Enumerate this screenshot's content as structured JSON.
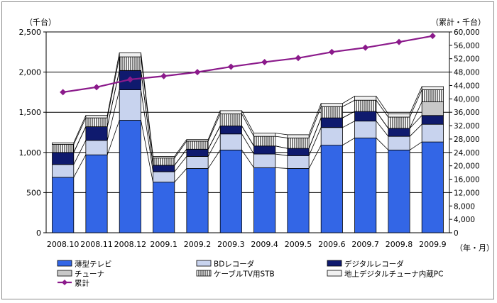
{
  "chart_data": {
    "type": "bar",
    "stacked": true,
    "categories": [
      "2008.10",
      "2008.11",
      "2008.12",
      "2009.1",
      "2009.2",
      "2009.3",
      "2009.4",
      "2009.5",
      "2009.6",
      "2009.7",
      "2009.8",
      "2009.9"
    ],
    "y_left_label": "（千台）",
    "y_right_label": "（累計・千台）",
    "x_unit_label": "（年・月）",
    "y_left_range": [
      0,
      2500
    ],
    "y_left_ticks": [
      "0",
      "500",
      "1,000",
      "1,500",
      "2,000",
      "2,500"
    ],
    "y_right_range": [
      0,
      60000
    ],
    "y_right_ticks": [
      "0",
      "4,000",
      "8,000",
      "12,000",
      "16,000",
      "20,000",
      "24,000",
      "28,000",
      "32,000",
      "36,000",
      "40,000",
      "44,000",
      "48,000",
      "52,000",
      "56,000",
      "60,000"
    ],
    "series": [
      {
        "name": "薄型テレビ",
        "values": [
          690,
          970,
          1400,
          630,
          800,
          1030,
          810,
          800,
          1090,
          1180,
          1030,
          1130
        ],
        "color": "#3366e6"
      },
      {
        "name": "BDレコーダ",
        "values": [
          160,
          180,
          380,
          130,
          150,
          200,
          170,
          160,
          220,
          210,
          170,
          220
        ],
        "color": "#c8d3ee"
      },
      {
        "name": "デジタルレコーダ",
        "values": [
          150,
          170,
          240,
          80,
          90,
          100,
          100,
          90,
          120,
          120,
          100,
          110
        ],
        "color": "#0f1a6e"
      },
      {
        "name": "チューナ",
        "values": [
          0,
          0,
          0,
          0,
          0,
          0,
          0,
          0,
          0,
          0,
          0,
          170
        ],
        "color": "#c8c8c8"
      },
      {
        "name": "ケーブルTV用STB",
        "values": [
          100,
          110,
          170,
          90,
          100,
          150,
          120,
          130,
          140,
          140,
          140,
          150
        ],
        "color": "hatch"
      },
      {
        "name": "地上デジタルチューナ内蔵PC",
        "values": [
          20,
          30,
          50,
          20,
          20,
          40,
          40,
          40,
          40,
          50,
          40,
          40
        ],
        "color": "#f0f0f0"
      }
    ],
    "line": {
      "name": "累計",
      "axis": "right",
      "values": [
        42000,
        43500,
        45800,
        46800,
        48000,
        49600,
        51000,
        52200,
        54000,
        55300,
        57000,
        58800
      ],
      "color": "#8b1a8b"
    }
  }
}
